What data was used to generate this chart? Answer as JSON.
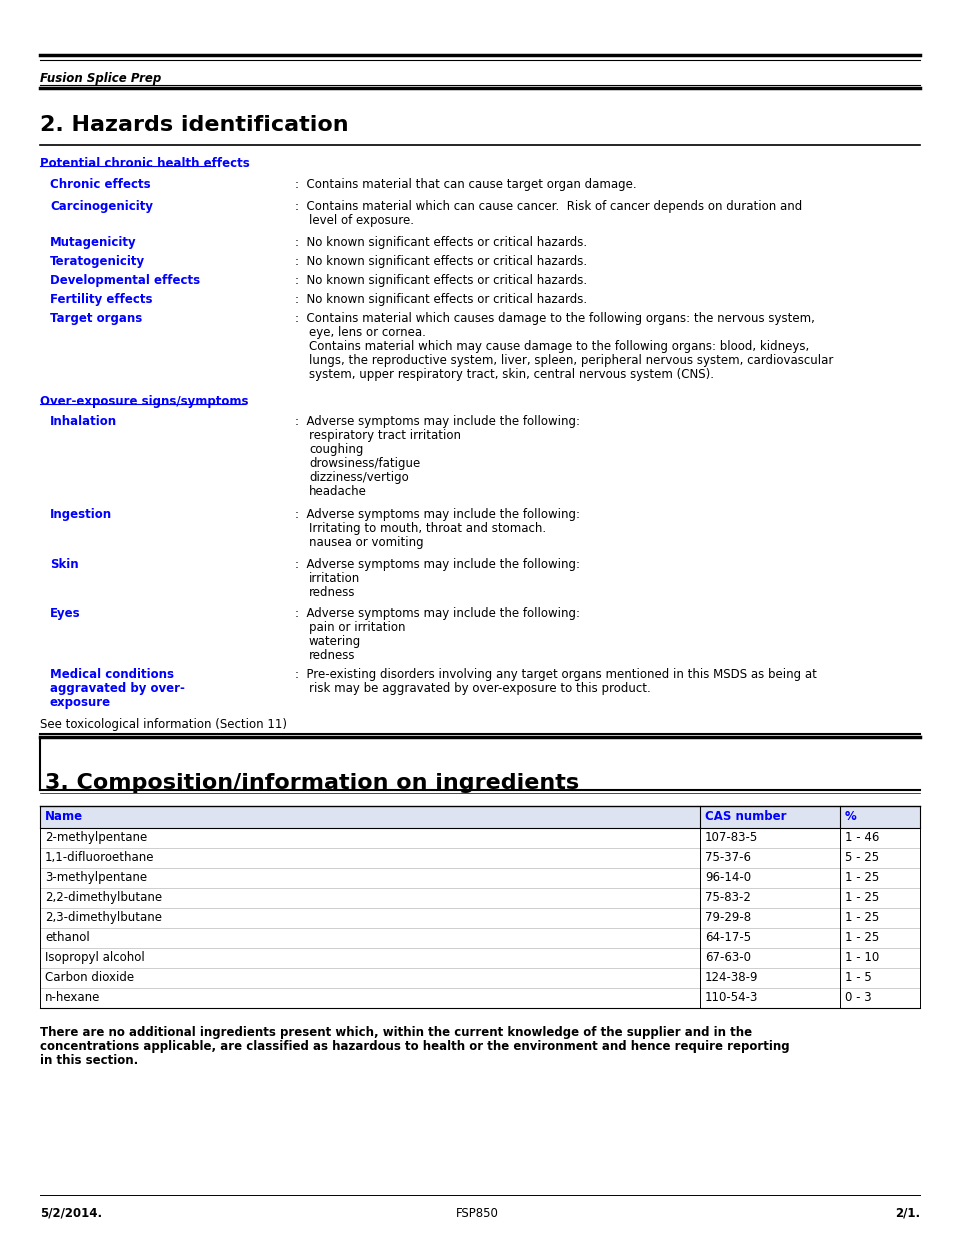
{
  "page_width": 9.54,
  "page_height": 12.35,
  "bg_color": "#ffffff",
  "text_color": "#000000",
  "blue_color": "#0000ff",
  "header_text": "Fusion Splice Prep",
  "section2_title": "2. Hazards identification",
  "section3_title": "3. Composition/information on ingredients",
  "footer_left": "5/2/2014.",
  "footer_center": "FSP850",
  "footer_right": "2/1.",
  "table_header": [
    "Name",
    "CAS number",
    "%"
  ],
  "table_rows": [
    [
      "2-methylpentane",
      "107-83-5",
      "1 - 46"
    ],
    [
      "1,1-difluoroethane",
      "75-37-6",
      "5 - 25"
    ],
    [
      "3-methylpentane",
      "96-14-0",
      "1 - 25"
    ],
    [
      "2,2-dimethylbutane",
      "75-83-2",
      "1 - 25"
    ],
    [
      "2,3-dimethylbutane",
      "79-29-8",
      "1 - 25"
    ],
    [
      "ethanol",
      "64-17-5",
      "1 - 25"
    ],
    [
      "Isopropyl alcohol",
      "67-63-0",
      "1 - 10"
    ],
    [
      "Carbon dioxide",
      "124-38-9",
      "1 - 5"
    ],
    [
      "n-hexane",
      "110-54-3",
      "0 - 3"
    ]
  ]
}
